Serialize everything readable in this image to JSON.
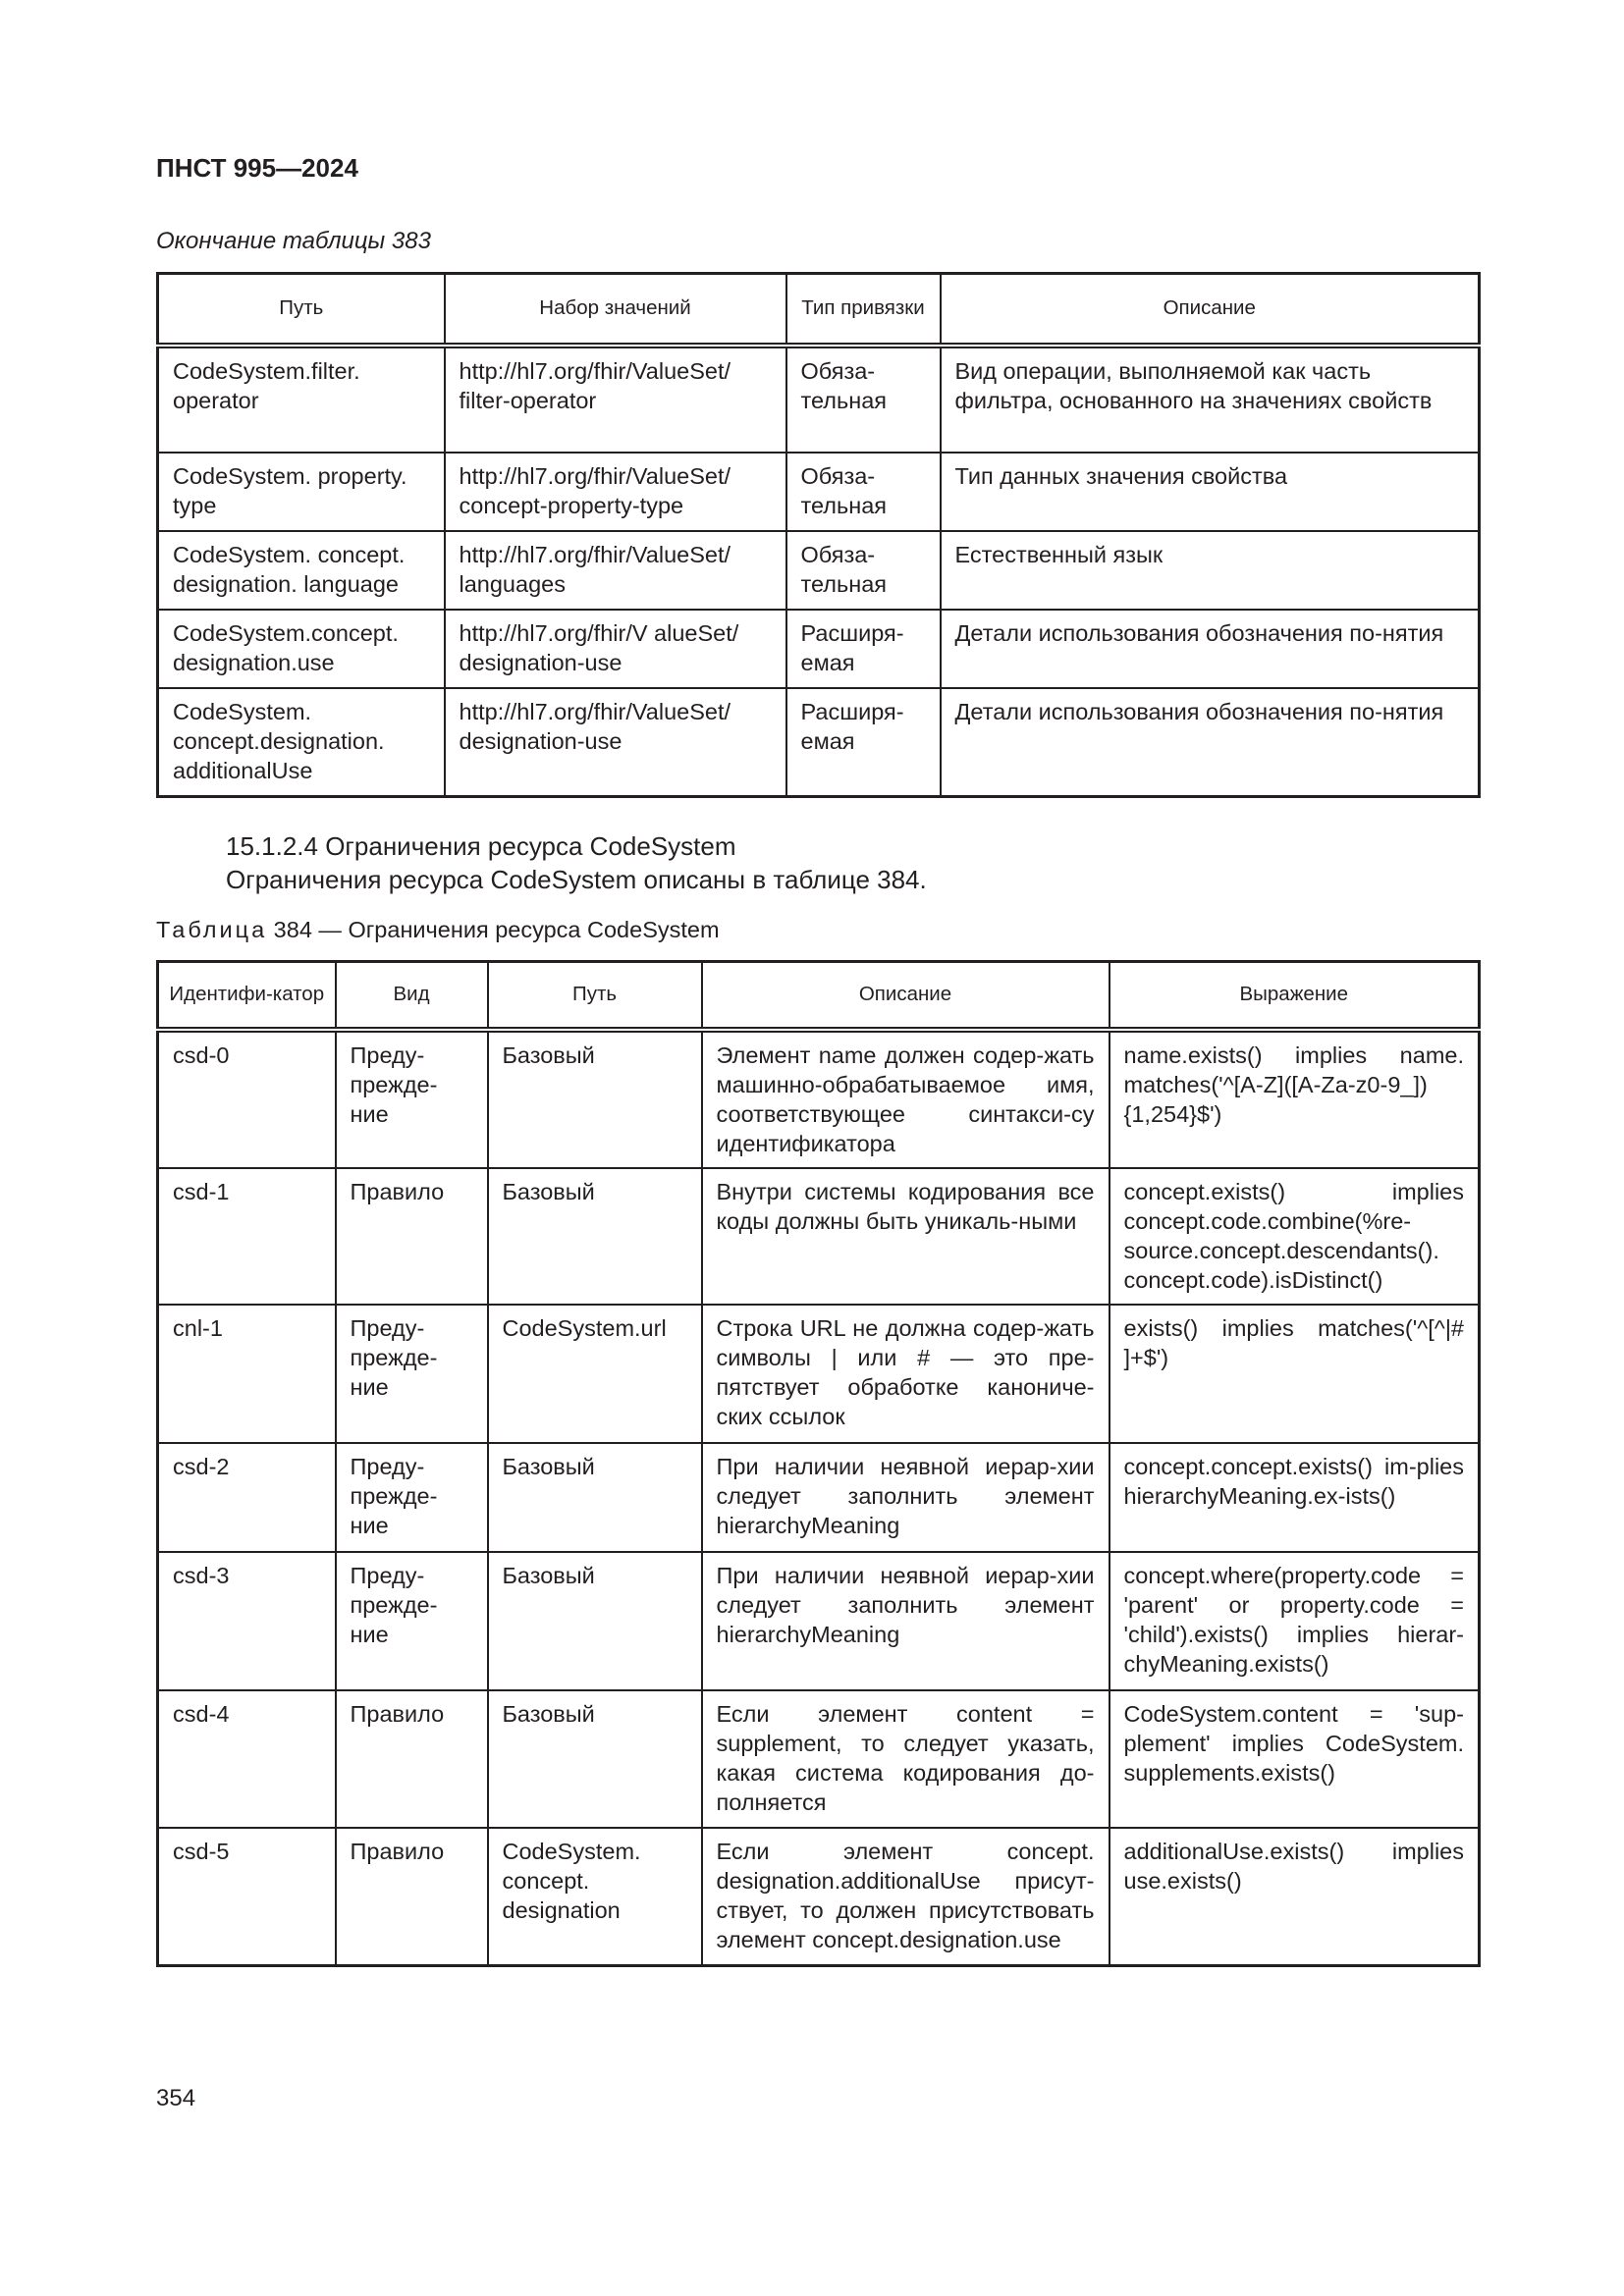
{
  "header": {
    "doc_code": "ПНСТ 995—2024"
  },
  "table383": {
    "caption": "Окончание таблицы 383",
    "columns": [
      "Путь",
      "Набор значений",
      "Тип привязки",
      "Описание"
    ],
    "rows": [
      [
        "CodeSystem.filter. operator",
        "http://hl7.org/fhir/ValueSet/ filter-operator",
        "Обяза-тельная",
        "Вид операции, выполняемой как часть фильтра, основанного на значениях свойств"
      ],
      [
        "CodeSystem. property. type",
        "http://hl7.org/fhir/ValueSet/ concept-property-type",
        "Обяза-тельная",
        "Тип данных значения свойства"
      ],
      [
        "CodeSystem. concept. designation. language",
        "http://hl7.org/fhir/ValueSet/ languages",
        "Обяза-тельная",
        "Естественный язык"
      ],
      [
        "CodeSystem.concept. designation.use",
        "http://hl7.org/fhir/V alueSet/ designation-use",
        "Расширя-емая",
        "Детали использования обозначения по-нятия"
      ],
      [
        "CodeSystem. concept.designation. additionalUse",
        "http://hl7.org/fhir/ValueSet/ designation-use",
        "Расширя-емая",
        "Детали использования обозначения по-нятия"
      ]
    ]
  },
  "section": {
    "heading": "15.1.2.4 Ограничения ресурса CodeSystem",
    "text": "Ограничения ресурса CodeSystem описаны в таблице 384."
  },
  "table384": {
    "caption_label": "Таблица",
    "caption_rest": " 384 — Ограничения ресурса CodeSystem",
    "columns": [
      "Идентифи-катор",
      "Вид",
      "Путь",
      "Описание",
      "Выражение"
    ],
    "rows": [
      [
        "csd-0",
        "Преду-прежде-ние",
        "Базовый",
        "Элемент name должен содер-жать машинно-обрабатываемое имя, соответствующее синтакси-су идентификатора",
        "name.exists() implies name. matches('^[A-Z]([A-Za-z0-9_]) {1,254}$')"
      ],
      [
        "csd-1",
        "Правило",
        "Базовый",
        "Внутри системы кодирования все коды должны быть уникаль-ными",
        "concept.exists() implies concept.code.combine(%re-source.concept.descendants(). concept.code).isDistinct()"
      ],
      [
        "cnl-1",
        "Преду-прежде-ние",
        "CodeSystem.url",
        "Строка URL не должна содер-жать символы | или # — это пре-пятствует обработке канониче-ских ссылок",
        "exists() implies matches('^[^|# ]+$')"
      ],
      [
        "csd-2",
        "Преду-прежде-ние",
        "Базовый",
        "При наличии неявной иерар-хии следует заполнить элемент hierarchyMeaning",
        "concept.concept.exists() im-plies hierarchyMeaning.ex-ists()"
      ],
      [
        "csd-3",
        "Преду-прежде-ние",
        "Базовый",
        "При наличии неявной иерар-хии следует заполнить элемент hierarchyMeaning",
        "concept.where(property.code = 'parent' or property.code = 'child').exists() implies hierar-chyMeaning.exists()"
      ],
      [
        "csd-4",
        "Правило",
        "Базовый",
        "Если элемент content = supplement, то следует указать, какая система кодирования до-полняется",
        "CodeSystem.content = 'sup-plement' implies CodeSystem. supplements.exists()"
      ],
      [
        "csd-5",
        "Правило",
        "CodeSystem. concept. designation",
        "Если элемент concept. designation.additionalUse присут-ствует, то должен присутствовать элемент concept.designation.use",
        "additionalUse.exists() implies use.exists()"
      ]
    ]
  },
  "footer": {
    "page_number": "354"
  }
}
